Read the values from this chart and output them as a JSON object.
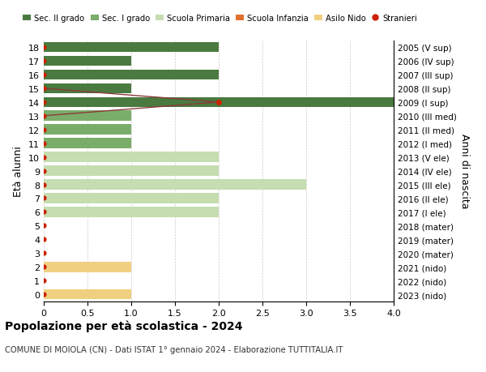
{
  "ages": [
    18,
    17,
    16,
    15,
    14,
    13,
    12,
    11,
    10,
    9,
    8,
    7,
    6,
    5,
    4,
    3,
    2,
    1,
    0
  ],
  "right_labels": [
    "2005 (V sup)",
    "2006 (IV sup)",
    "2007 (III sup)",
    "2008 (II sup)",
    "2009 (I sup)",
    "2010 (III med)",
    "2011 (II med)",
    "2012 (I med)",
    "2013 (V ele)",
    "2014 (IV ele)",
    "2015 (III ele)",
    "2016 (II ele)",
    "2017 (I ele)",
    "2018 (mater)",
    "2019 (mater)",
    "2020 (mater)",
    "2021 (nido)",
    "2022 (nido)",
    "2023 (nido)"
  ],
  "bars": [
    {
      "age": 18,
      "value": 2,
      "color": "#4a7a3f"
    },
    {
      "age": 17,
      "value": 1,
      "color": "#4a7a3f"
    },
    {
      "age": 16,
      "value": 2,
      "color": "#4a7a3f"
    },
    {
      "age": 15,
      "value": 1,
      "color": "#4a7a3f"
    },
    {
      "age": 14,
      "value": 4,
      "color": "#4a7a3f"
    },
    {
      "age": 13,
      "value": 1,
      "color": "#7aad6a"
    },
    {
      "age": 12,
      "value": 1,
      "color": "#7aad6a"
    },
    {
      "age": 11,
      "value": 1,
      "color": "#7aad6a"
    },
    {
      "age": 10,
      "value": 2,
      "color": "#c5ddb0"
    },
    {
      "age": 9,
      "value": 2,
      "color": "#c5ddb0"
    },
    {
      "age": 8,
      "value": 3,
      "color": "#c5ddb0"
    },
    {
      "age": 7,
      "value": 2,
      "color": "#c5ddb0"
    },
    {
      "age": 6,
      "value": 2,
      "color": "#c5ddb0"
    },
    {
      "age": 2,
      "value": 1,
      "color": "#f0d080"
    },
    {
      "age": 0,
      "value": 1,
      "color": "#f0d080"
    }
  ],
  "stranieri_line_ages": [
    15,
    14,
    13
  ],
  "stranieri_line_vals": [
    0,
    2,
    0
  ],
  "stranieri_dot_age": 14,
  "stranieri_dot_val": 2,
  "color_sec2": "#4a7a3f",
  "color_sec1": "#7aad6a",
  "color_primaria": "#c5ddb0",
  "color_infanzia": "#e07030",
  "color_nido": "#f0d080",
  "color_stranieri": "#cc2200",
  "color_stranieri_line": "#8b3a3a",
  "title": "Popolazione per età scolastica - 2024",
  "subtitle": "COMUNE DI MOIOLA (CN) - Dati ISTAT 1° gennaio 2024 - Elaborazione TUTTITALIA.IT",
  "ylabel_left": "Età alunni",
  "ylabel_right": "Anni di nascita",
  "xlim": [
    0,
    4
  ],
  "bg_color": "#ffffff",
  "grid_color": "#cccccc",
  "xticks": [
    0,
    0.5,
    1.0,
    1.5,
    2.0,
    2.5,
    3.0,
    3.5,
    4.0
  ],
  "xtick_labels": [
    "0",
    "0.5",
    "1.0",
    "1.5",
    "2.0",
    "2.5",
    "3.0",
    "3.5",
    "4.0"
  ]
}
